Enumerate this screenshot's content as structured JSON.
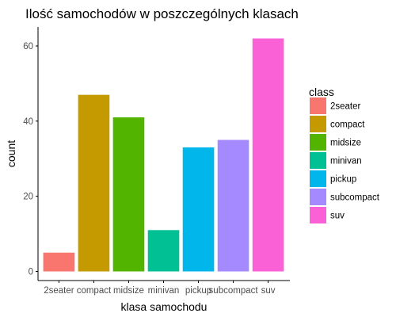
{
  "chart_data": {
    "type": "bar",
    "title": "Ilość samochodów w poszczególnych klasach",
    "xlabel": "klasa samochodu",
    "ylabel": "count",
    "categories": [
      "2seater",
      "compact",
      "midsize",
      "minivan",
      "pickup",
      "subcompact",
      "suv"
    ],
    "values": [
      5,
      47,
      41,
      11,
      33,
      35,
      62
    ],
    "colors": [
      "#F8766D",
      "#C49A00",
      "#53B400",
      "#00C094",
      "#00B6EB",
      "#A58AFF",
      "#FB61D7"
    ],
    "ylim": [
      0,
      65
    ],
    "yticks": [
      0,
      20,
      40,
      60
    ],
    "grid": false,
    "legend": {
      "title": "class",
      "position": "right"
    }
  }
}
